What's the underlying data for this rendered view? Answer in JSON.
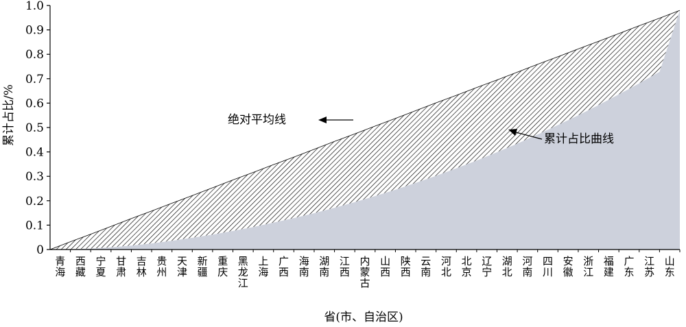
{
  "chart_data": {
    "type": "area",
    "title": "",
    "xlabel": "省(市、自治区)",
    "ylabel": "累计占比/%",
    "ylim": [
      0,
      1.0
    ],
    "yticks": [
      "0",
      "0.1",
      "0.2",
      "0.3",
      "0.4",
      "0.5",
      "0.6",
      "0.7",
      "0.8",
      "0.9",
      "1.0"
    ],
    "grid": false,
    "categories": [
      "青海",
      "西藏",
      "宁夏",
      "甘肃",
      "吉林",
      "贵州",
      "天津",
      "新疆",
      "重庆",
      "黑龙江",
      "上海",
      "广西",
      "海南",
      "湖南",
      "江西",
      "内蒙古",
      "山西",
      "陕西",
      "云南",
      "河北",
      "北京",
      "辽宁",
      "湖北",
      "河南",
      "四川",
      "安徽",
      "浙江",
      "福建",
      "广东",
      "江苏",
      "山东"
    ],
    "series": [
      {
        "name": "绝对平均线",
        "values": [
          0.032,
          0.063,
          0.095,
          0.127,
          0.158,
          0.19,
          0.221,
          0.253,
          0.285,
          0.316,
          0.348,
          0.379,
          0.411,
          0.443,
          0.474,
          0.506,
          0.537,
          0.569,
          0.601,
          0.632,
          0.664,
          0.695,
          0.727,
          0.759,
          0.79,
          0.822,
          0.853,
          0.885,
          0.917,
          0.948,
          0.98
        ]
      },
      {
        "name": "累计占比曲线",
        "values": [
          0.001,
          0.004,
          0.009,
          0.016,
          0.025,
          0.036,
          0.048,
          0.061,
          0.076,
          0.092,
          0.11,
          0.129,
          0.149,
          0.171,
          0.194,
          0.219,
          0.245,
          0.273,
          0.302,
          0.333,
          0.365,
          0.399,
          0.434,
          0.471,
          0.51,
          0.55,
          0.592,
          0.636,
          0.681,
          0.728,
          0.98
        ]
      }
    ],
    "annotations": [
      {
        "text": "绝对平均线",
        "target": "绝对平均线"
      },
      {
        "text": "累计占比曲线",
        "target": "累计占比曲线"
      }
    ],
    "colors": {
      "fill": "#cdd1dc",
      "hatch": "#000000",
      "axis": "#000000"
    }
  }
}
